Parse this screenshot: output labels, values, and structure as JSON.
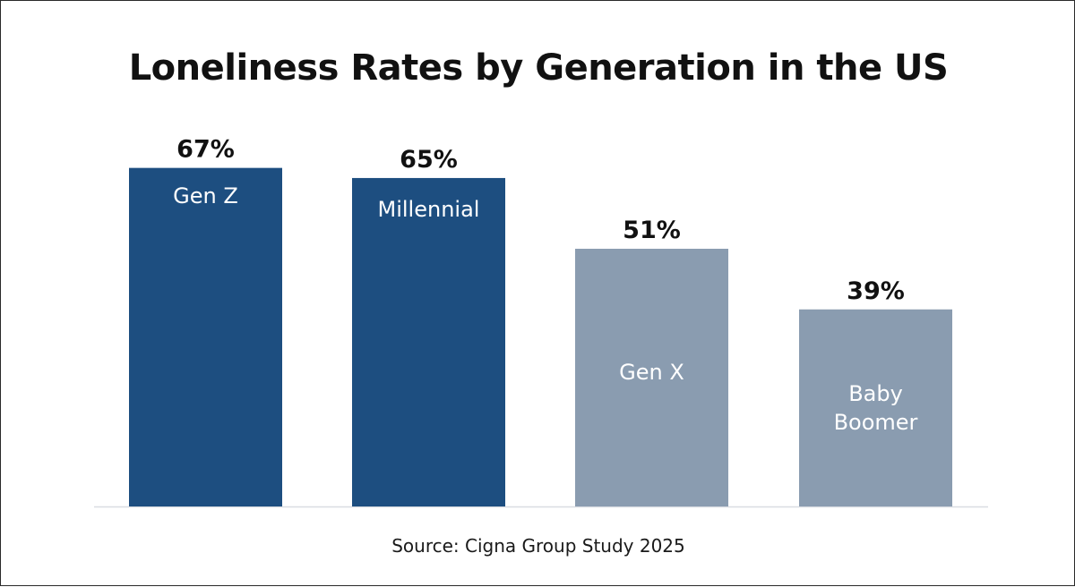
{
  "chart_data": {
    "type": "bar",
    "title": "Loneliness Rates by Generation in the US",
    "categories": [
      "Gen Z",
      "Millennial",
      "Gen X",
      "Baby Boomer"
    ],
    "category_lines": [
      [
        "Gen Z"
      ],
      [
        "Millennial"
      ],
      [
        "Gen X"
      ],
      [
        "Baby",
        "Boomer"
      ]
    ],
    "values": [
      67,
      65,
      51,
      39
    ],
    "value_labels": [
      "67%",
      "65%",
      "51%",
      "39%"
    ],
    "unit": "%",
    "ylim": [
      0,
      76.5
    ],
    "grid": false,
    "legend": "none",
    "bar_colors": [
      "#1d4e80",
      "#1d4e80",
      "#8a9cb0",
      "#8a9cb0"
    ],
    "label_color": "#ffffff",
    "value_label_color": "#111111",
    "axis_line_color": "#d9dde2"
  },
  "source": "Source: Cigna Group Study 2025"
}
